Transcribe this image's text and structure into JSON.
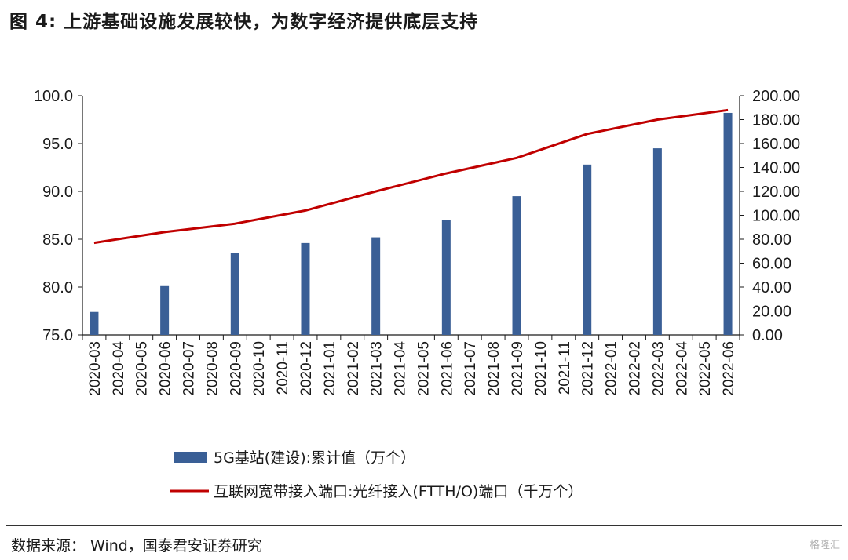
{
  "title": "图 4: 上游基础设施发展较快，为数字经济提供底层支持",
  "source": "数据来源： Wind，国泰君安证券研究",
  "watermark": "格隆汇",
  "colors": {
    "bar": "#3a5f96",
    "line": "#c00000",
    "axis": "#1a1a1a"
  },
  "chart_data": {
    "type": "bar",
    "title": "",
    "categories": [
      "2020-03",
      "2020-04",
      "2020-05",
      "2020-06",
      "2020-07",
      "2020-08",
      "2020-09",
      "2020-10",
      "2020-11",
      "2020-12",
      "2021-01",
      "2021-02",
      "2021-03",
      "2021-04",
      "2021-05",
      "2021-06",
      "2021-07",
      "2021-08",
      "2021-09",
      "2021-10",
      "2021-11",
      "2021-12",
      "2022-01",
      "2022-02",
      "2022-03",
      "2022-04",
      "2022-05",
      "2022-06"
    ],
    "y_left": {
      "min": 75.0,
      "max": 100.0,
      "ticks": [
        "75.0",
        "80.0",
        "85.0",
        "90.0",
        "95.0",
        "100.0"
      ]
    },
    "y_right": {
      "min": 0,
      "max": 200,
      "ticks": [
        "0.00",
        "20.00",
        "40.00",
        "60.00",
        "80.00",
        "100.00",
        "120.00",
        "140.00",
        "160.00",
        "180.00",
        "200.00"
      ]
    },
    "series": [
      {
        "name": "5G基站(建设):累计值（万个）",
        "type": "bar",
        "axis": "left",
        "color": "#3a5f96",
        "values": [
          77.4,
          null,
          null,
          80.1,
          null,
          null,
          83.6,
          null,
          null,
          84.6,
          null,
          null,
          85.2,
          null,
          null,
          87.0,
          null,
          null,
          89.5,
          null,
          null,
          92.8,
          null,
          null,
          94.5,
          null,
          null,
          98.2
        ]
      },
      {
        "name": "互联网宽带接入端口:光纤接入(FTTH/O)端口（千万个）",
        "type": "line",
        "axis": "right",
        "color": "#c00000",
        "values": [
          77,
          null,
          null,
          86,
          null,
          null,
          93,
          null,
          null,
          104,
          null,
          null,
          120,
          null,
          null,
          135,
          null,
          null,
          148,
          null,
          null,
          168,
          null,
          null,
          180,
          null,
          null,
          188
        ]
      }
    ],
    "grid": false,
    "legend_position": "bottom"
  }
}
